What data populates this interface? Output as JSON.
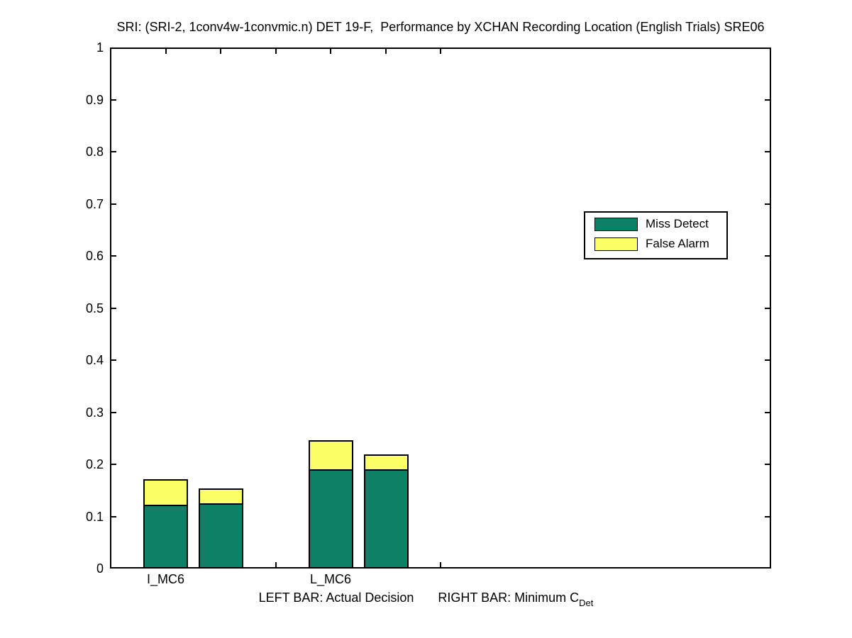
{
  "title": "SRI: (SRI-2, 1conv4w-1convmic.n) DET 19-F,  Performance by XCHAN Recording Location (English Trials) SRE06",
  "legend": {
    "items": [
      {
        "label": "Miss Detect",
        "color": "#0d8066"
      },
      {
        "label": "False Alarm",
        "color": "#fbff66"
      }
    ]
  },
  "footnote": {
    "left": "LEFT BAR: Actual Decision",
    "right": "RIGHT BAR: Minimum C",
    "subscript": "Det"
  },
  "chart_data": {
    "type": "bar",
    "stacked": true,
    "title": "SRI: (SRI-2, 1conv4w-1convmic.n) DET 19-F,  Performance by XCHAN Recording Location (English Trials) SRE06",
    "categories": [
      "I_MC6",
      "L_MC6"
    ],
    "bar_meaning": {
      "left": "Actual Decision",
      "right": "Minimum CDet"
    },
    "series": [
      {
        "name": "Miss Detect",
        "color": "#0d8066",
        "bars": {
          "actual": [
            0.122,
            0.19
          ],
          "minimum": [
            0.125,
            0.19
          ]
        }
      },
      {
        "name": "False Alarm",
        "color": "#fbff66",
        "bars": {
          "actual": [
            0.049,
            0.056
          ],
          "minimum": [
            0.029,
            0.029
          ]
        }
      }
    ],
    "totals": {
      "actual": [
        0.171,
        0.246
      ],
      "minimum": [
        0.156,
        0.219
      ]
    },
    "ylim": [
      0,
      1
    ],
    "yticks": [
      0,
      0.1,
      0.2,
      0.3,
      0.4,
      0.5,
      0.6,
      0.7,
      0.8,
      0.9,
      1
    ],
    "ytick_labels": [
      "0",
      "0.1",
      "0.2",
      "0.3",
      "0.4",
      "0.5",
      "0.6",
      "0.7",
      "0.8",
      "0.9",
      "1"
    ],
    "xlim": [
      0.662,
      4.671
    ],
    "xticks": [
      1,
      1.3333,
      1.6667,
      2,
      2.3333,
      2.6667
    ],
    "x_group_positions": [
      1,
      2
    ],
    "right_bar_offset": 0.3355,
    "bar_width": 0.27,
    "grid": false,
    "legend_position": "upper-right-inside",
    "axis_color": "#000000",
    "background_color": "#ffffff"
  }
}
